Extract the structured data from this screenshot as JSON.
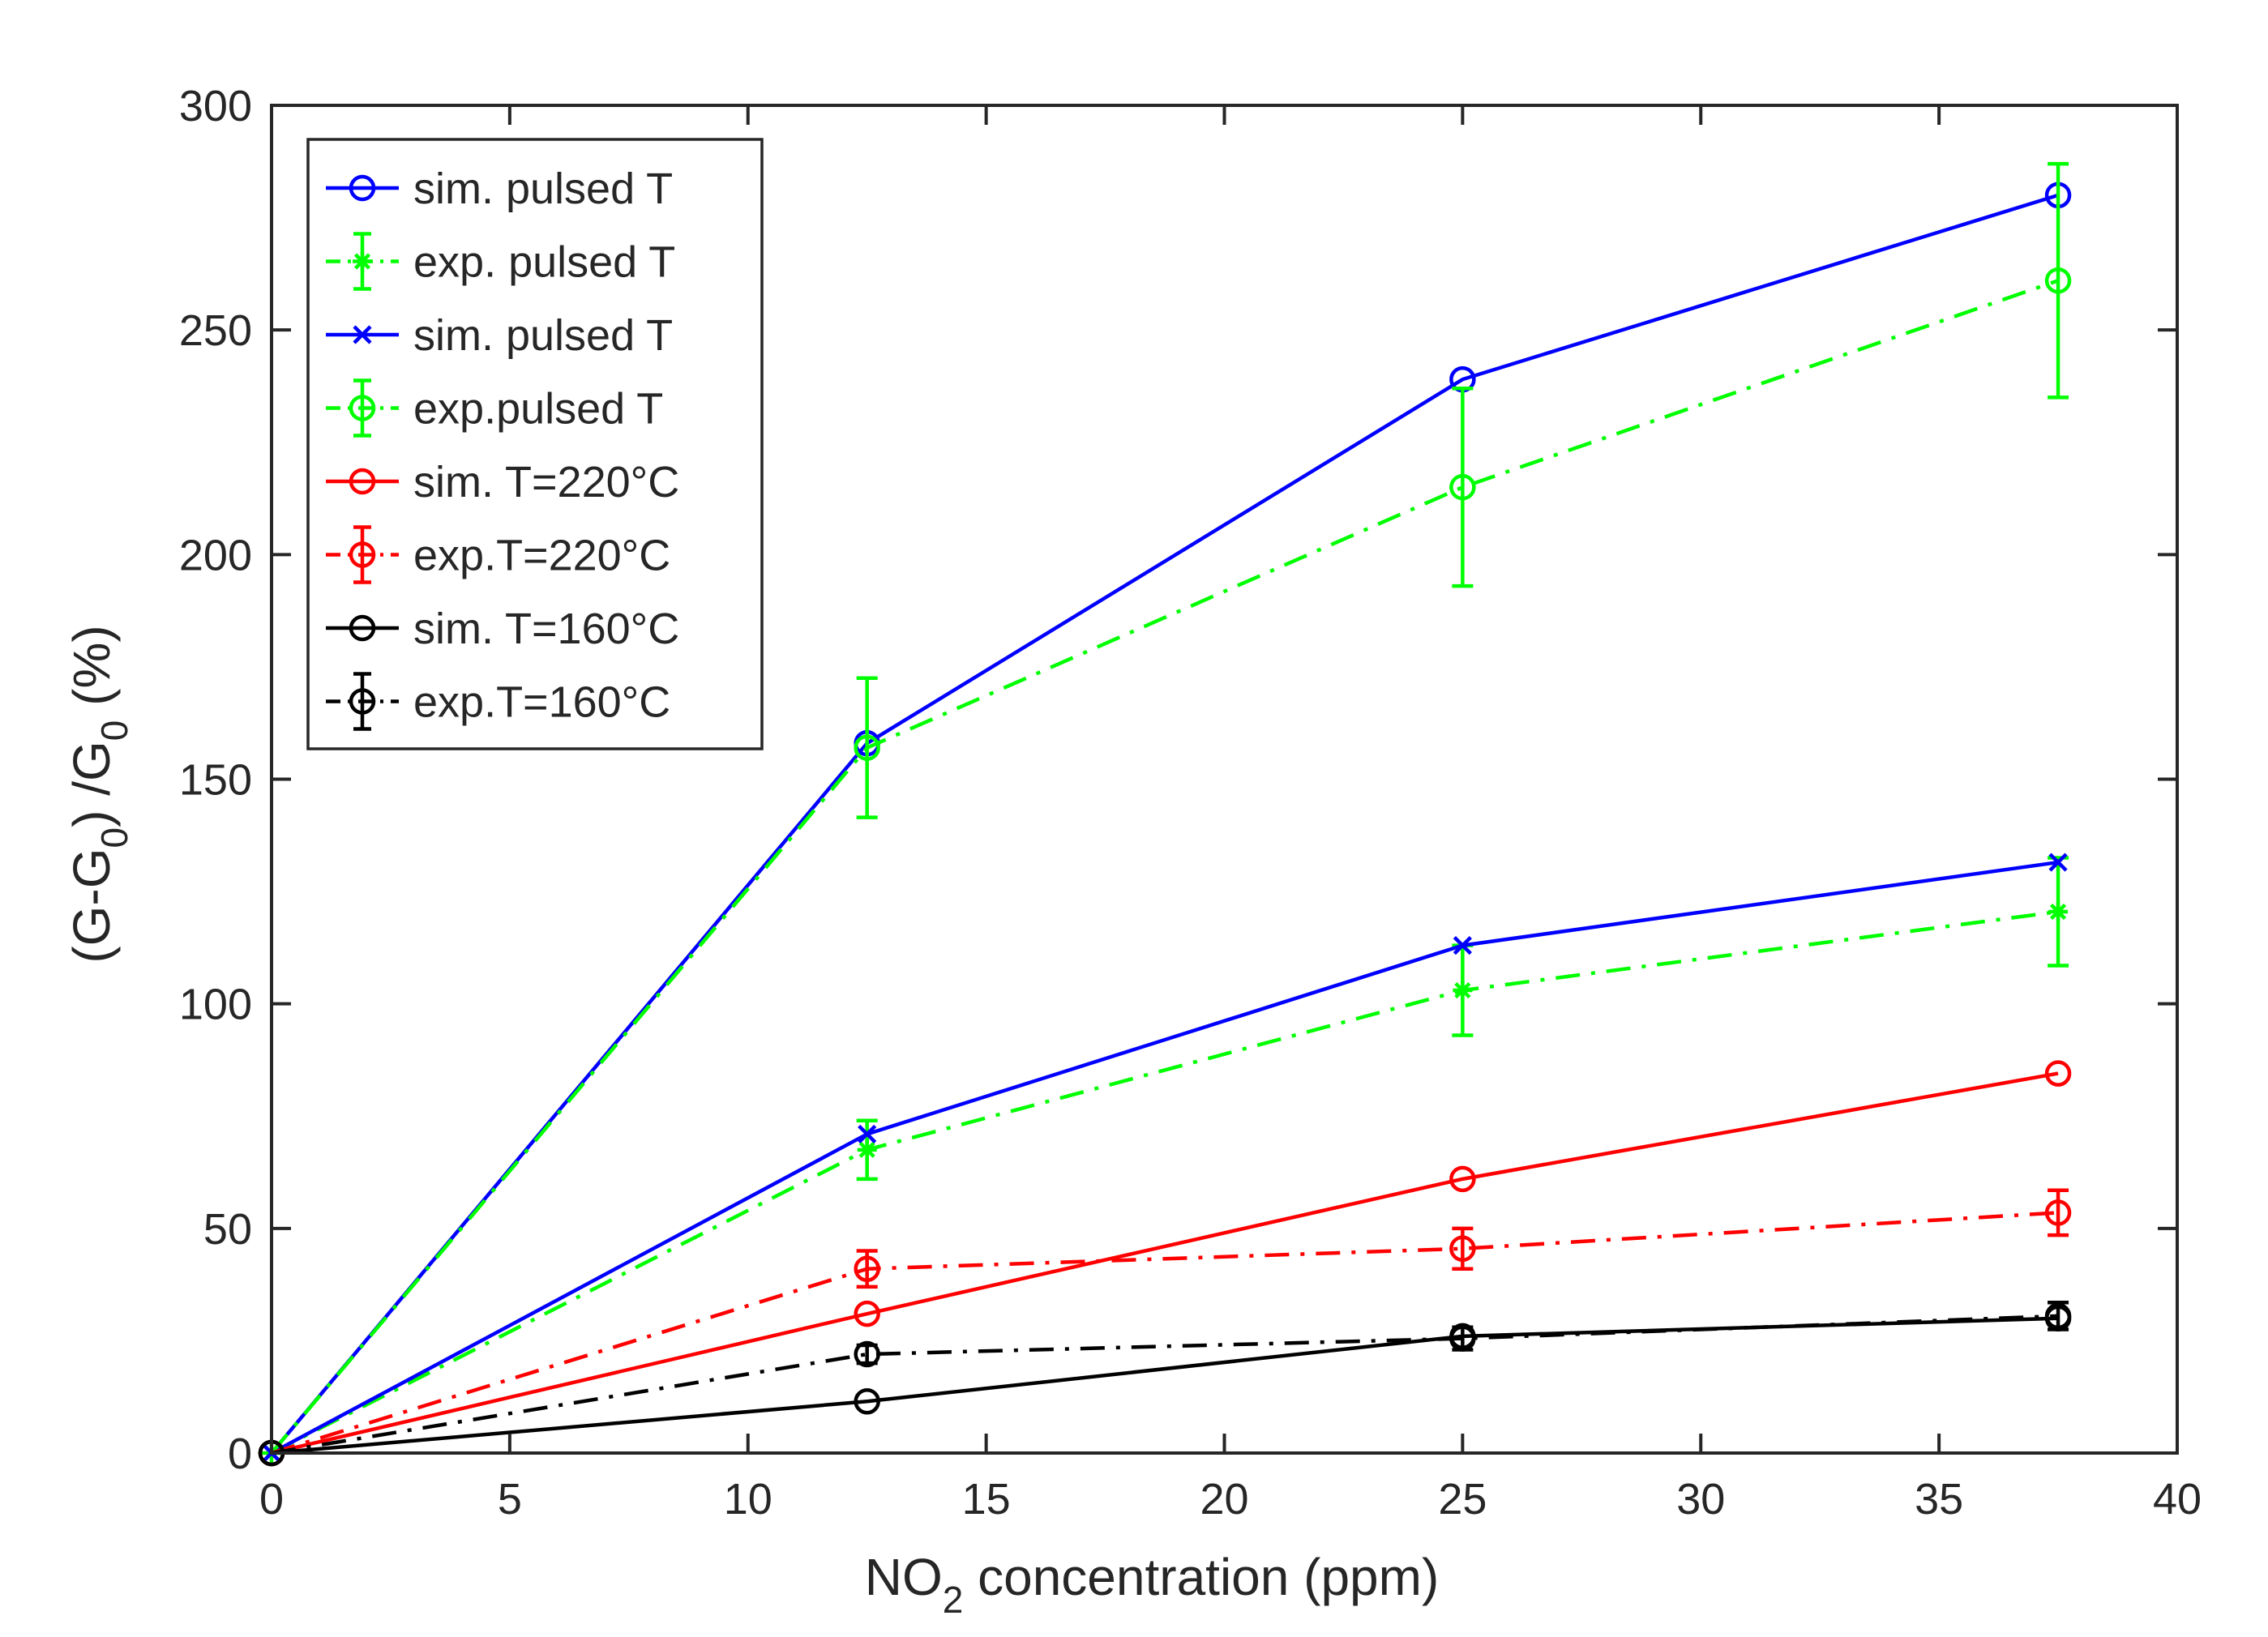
{
  "chart_data": {
    "type": "line",
    "title": "",
    "xlabel": {
      "main": "NO",
      "sub": "2",
      "rest": " concentration (ppm)"
    },
    "ylabel": {
      "p1": "(G-G",
      "s1": "0",
      "p2": ") /G",
      "s2": "0",
      "p3": " (%)"
    },
    "xlim": [
      0,
      40
    ],
    "ylim": [
      0,
      300
    ],
    "xticks": [
      0,
      5,
      10,
      15,
      20,
      25,
      30,
      35,
      40
    ],
    "yticks": [
      0,
      50,
      100,
      150,
      200,
      250,
      300
    ],
    "grid": false,
    "legend_position": "top-left",
    "x": [
      0,
      12.5,
      25,
      37.5
    ],
    "series": [
      {
        "name": "sim. pulsed T",
        "color": "#0000ff",
        "dash": "solid",
        "marker": "circle",
        "values": [
          0,
          158,
          239,
          280
        ]
      },
      {
        "name": "exp. pulsed T",
        "color": "#00ff00",
        "dash": "dashdot",
        "marker": "star",
        "values": [
          0,
          67.5,
          103,
          120.5
        ],
        "err": [
          0,
          6.5,
          10,
          12
        ]
      },
      {
        "name": "sim. pulsed T",
        "color": "#0000ff",
        "dash": "solid",
        "marker": "x",
        "values": [
          0,
          71,
          113,
          131.5
        ]
      },
      {
        "name": "exp.pulsed T",
        "color": "#00ff00",
        "dash": "dashdot",
        "marker": "circle",
        "values": [
          0,
          157,
          215,
          261
        ],
        "err": [
          0,
          15.5,
          22,
          26
        ]
      },
      {
        "name": "sim. T=220°C",
        "color": "#ff0000",
        "dash": "solid",
        "marker": "circle",
        "values": [
          0,
          31,
          61,
          84.5
        ]
      },
      {
        "name": "exp.T=220°C",
        "color": "#ff0000",
        "dash": "dashdot",
        "marker": "circle",
        "values": [
          0,
          41,
          45.5,
          53.5
        ],
        "err": [
          0,
          4,
          4.5,
          5
        ]
      },
      {
        "name": "sim. T=160°C",
        "color": "#000000",
        "dash": "solid",
        "marker": "circle",
        "values": [
          0,
          11.5,
          26,
          30
        ]
      },
      {
        "name": "exp.T=160°C",
        "color": "#000000",
        "dash": "dashdot",
        "marker": "circle",
        "values": [
          0,
          22,
          25.5,
          30.5
        ],
        "err": [
          0,
          2,
          2.5,
          3
        ]
      }
    ]
  }
}
